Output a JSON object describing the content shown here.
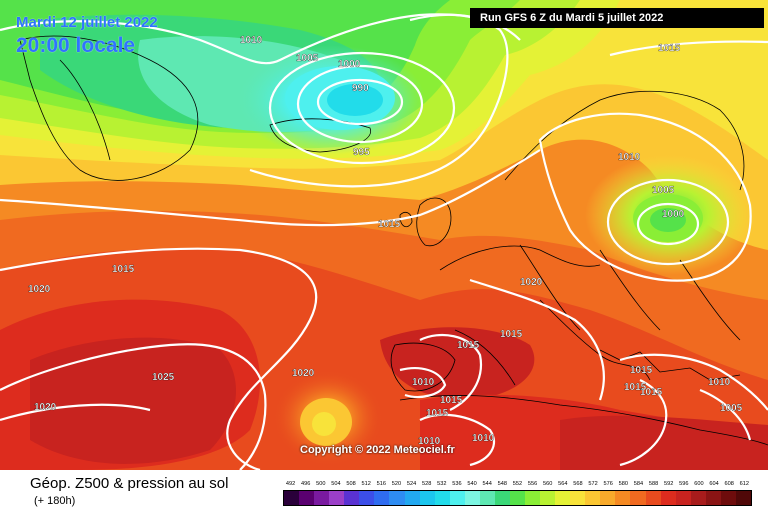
{
  "header": {
    "date": "Mardi 12 juillet 2022",
    "time": "20:00 locale",
    "run": "Run GFS 6 Z du Mardi 5 juillet 2022"
  },
  "copyright": "Copyright © 2022 Meteociel.fr",
  "caption": {
    "title": "Géop. Z500 & pression au sol",
    "subtitle": "(+ 180h)"
  },
  "legend": {
    "values": [
      "492",
      "496",
      "500",
      "504",
      "508",
      "512",
      "516",
      "520",
      "524",
      "528",
      "532",
      "536",
      "540",
      "544",
      "548",
      "552",
      "556",
      "560",
      "564",
      "568",
      "572",
      "576",
      "580",
      "584",
      "588",
      "592",
      "596",
      "600",
      "604",
      "608",
      "612"
    ],
    "colors": [
      "#2a003a",
      "#5a0070",
      "#7a1aa0",
      "#9b3fc8",
      "#5a32d2",
      "#3c4ee8",
      "#2f6cf0",
      "#2e8cf2",
      "#22a8f0",
      "#1cc6ee",
      "#22dcea",
      "#4ef0ee",
      "#7cf6e2",
      "#5ee8b2",
      "#3ad878",
      "#55e24a",
      "#8aee36",
      "#b8f232",
      "#e4f236",
      "#f8e33a",
      "#fbc733",
      "#f8aa2b",
      "#f58a23",
      "#f06a20",
      "#e84b1e",
      "#dd2c1e",
      "#c8231f",
      "#a81c1c",
      "#8a1414",
      "#6e0c0c",
      "#500808"
    ]
  },
  "pressure_labels": [
    "1010",
    "1005",
    "1000",
    "990",
    "995",
    "1015",
    "1010",
    "1005",
    "1000",
    "1015",
    "1015",
    "1020",
    "1015",
    "1020",
    "1025",
    "1020",
    "1015",
    "1010",
    "1015",
    "1015",
    "1010",
    "1010",
    "1015",
    "1015",
    "1010",
    "1005",
    "1020",
    "1015"
  ]
}
